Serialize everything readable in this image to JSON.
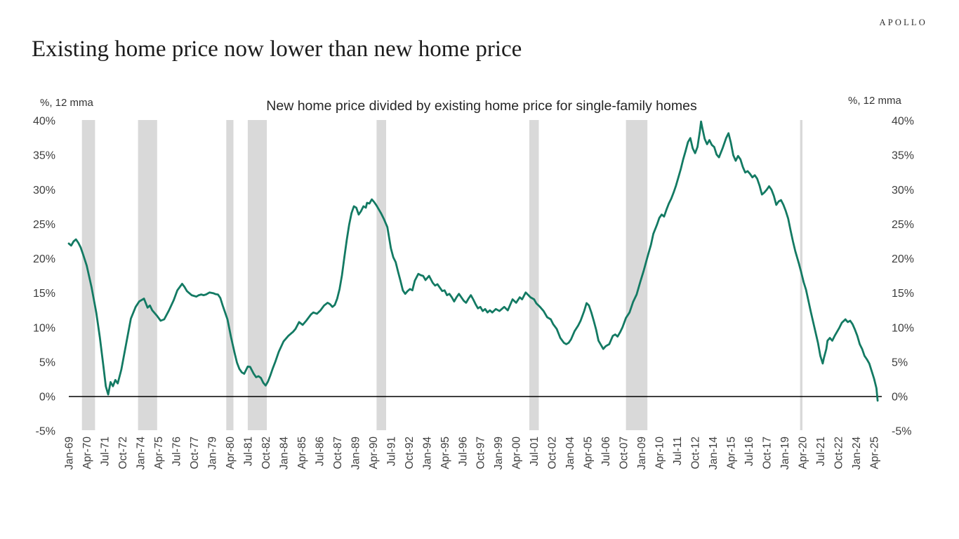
{
  "branding": {
    "logo": "APOLLO"
  },
  "header": {
    "title": "Existing home price now lower than new home price"
  },
  "chart": {
    "title": "New home price divided by existing home price for single-family homes",
    "left_unit_label": "%, 12 mma",
    "right_unit_label": "%, 12 mma",
    "line_color": "#137a63",
    "recession_band_color": "#d9d9d9",
    "axis_line_color": "#000000",
    "tick_text_color": "#3d3d3d"
  },
  "chart_data": {
    "type": "line",
    "title": "New home price divided by existing home price for single-family homes",
    "xlabel": "",
    "ylabel": "%, 12 mma",
    "ylim": [
      -5,
      40
    ],
    "grid": false,
    "legend": "none",
    "y_tick_values": [
      40,
      35,
      30,
      25,
      20,
      15,
      10,
      5,
      0,
      -5
    ],
    "y_tick_labels": [
      "40%",
      "35%",
      "30%",
      "25%",
      "20%",
      "15%",
      "10%",
      "5%",
      "0%",
      "-5%"
    ],
    "x_start_month": "1969-01",
    "x_tick_interval_months": 15,
    "x_tick_labels": [
      "Jan-69",
      "Apr-70",
      "Jul-71",
      "Oct-72",
      "Jan-74",
      "Apr-75",
      "Jul-76",
      "Oct-77",
      "Jan-79",
      "Apr-80",
      "Jul-81",
      "Oct-82",
      "Jan-84",
      "Apr-85",
      "Jul-86",
      "Oct-87",
      "Jan-89",
      "Apr-90",
      "Jul-91",
      "Oct-92",
      "Jan-94",
      "Apr-95",
      "Jul-96",
      "Oct-97",
      "Jan-99",
      "Apr-00",
      "Jul-01",
      "Oct-02",
      "Jan-04",
      "Apr-05",
      "Jul-06",
      "Oct-07",
      "Jan-09",
      "Apr-10",
      "Jul-11",
      "Oct-12",
      "Jan-14",
      "Apr-15",
      "Jul-16",
      "Oct-17",
      "Jan-19",
      "Apr-20",
      "Jul-21",
      "Oct-22",
      "Jan-24",
      "Apr-25"
    ],
    "recession_bands_month_range": [
      [
        11,
        22
      ],
      [
        58,
        74
      ],
      [
        132,
        138
      ],
      [
        150,
        166
      ],
      [
        258,
        266
      ],
      [
        386,
        394
      ],
      [
        467,
        485
      ],
      [
        613,
        615
      ]
    ],
    "series": [
      {
        "name": "New home price divided by existing home price (%, 12 mma)",
        "points_month_value": [
          [
            0,
            22.2
          ],
          [
            2,
            21.9
          ],
          [
            4,
            22.5
          ],
          [
            6,
            22.8
          ],
          [
            8,
            22.3
          ],
          [
            10,
            21.6
          ],
          [
            12,
            20.6
          ],
          [
            15,
            19.0
          ],
          [
            19,
            15.9
          ],
          [
            23,
            12.2
          ],
          [
            26,
            8.6
          ],
          [
            29,
            4.4
          ],
          [
            31,
            1.5
          ],
          [
            33,
            0.3
          ],
          [
            35,
            2.1
          ],
          [
            37,
            1.5
          ],
          [
            39,
            2.4
          ],
          [
            41,
            1.9
          ],
          [
            44,
            3.9
          ],
          [
            48,
            7.6
          ],
          [
            52,
            11.3
          ],
          [
            56,
            13.0
          ],
          [
            59,
            13.8
          ],
          [
            63,
            14.2
          ],
          [
            66,
            12.9
          ],
          [
            68,
            13.2
          ],
          [
            70,
            12.5
          ],
          [
            74,
            11.7
          ],
          [
            77,
            11.0
          ],
          [
            80,
            11.2
          ],
          [
            84,
            12.5
          ],
          [
            88,
            14.0
          ],
          [
            91,
            15.4
          ],
          [
            95,
            16.35
          ],
          [
            97,
            15.9
          ],
          [
            99,
            15.3
          ],
          [
            101,
            15.0
          ],
          [
            103,
            14.7
          ],
          [
            107,
            14.5
          ],
          [
            109,
            14.7
          ],
          [
            111,
            14.8
          ],
          [
            113,
            14.7
          ],
          [
            115,
            14.8
          ],
          [
            118,
            15.1
          ],
          [
            121,
            15.0
          ],
          [
            123,
            14.85
          ],
          [
            125,
            14.8
          ],
          [
            127,
            14.3
          ],
          [
            129,
            13.2
          ],
          [
            131,
            12.2
          ],
          [
            133,
            11.2
          ],
          [
            136,
            8.6
          ],
          [
            139,
            6.3
          ],
          [
            141,
            4.9
          ],
          [
            143,
            4.0
          ],
          [
            145,
            3.5
          ],
          [
            147,
            3.3
          ],
          [
            150,
            4.35
          ],
          [
            152,
            4.3
          ],
          [
            155,
            3.3
          ],
          [
            157,
            2.8
          ],
          [
            159,
            2.95
          ],
          [
            161,
            2.7
          ],
          [
            163,
            2.0
          ],
          [
            165,
            1.6
          ],
          [
            167,
            2.2
          ],
          [
            169,
            3.1
          ],
          [
            171,
            4.1
          ],
          [
            173,
            5.0
          ],
          [
            176,
            6.5
          ],
          [
            180,
            8.0
          ],
          [
            184,
            8.8
          ],
          [
            188,
            9.4
          ],
          [
            190,
            9.8
          ],
          [
            193,
            10.8
          ],
          [
            196,
            10.4
          ],
          [
            199,
            11.0
          ],
          [
            203,
            11.9
          ],
          [
            205,
            12.2
          ],
          [
            208,
            12.0
          ],
          [
            211,
            12.5
          ],
          [
            214,
            13.2
          ],
          [
            217,
            13.6
          ],
          [
            219,
            13.4
          ],
          [
            221,
            13.0
          ],
          [
            223,
            13.3
          ],
          [
            225,
            14.2
          ],
          [
            227,
            15.6
          ],
          [
            229,
            17.6
          ],
          [
            231,
            20.2
          ],
          [
            233,
            22.7
          ],
          [
            235,
            24.9
          ],
          [
            237,
            26.6
          ],
          [
            239,
            27.6
          ],
          [
            241,
            27.4
          ],
          [
            243,
            26.4
          ],
          [
            245,
            26.9
          ],
          [
            247,
            27.6
          ],
          [
            249,
            27.4
          ],
          [
            250,
            28.1
          ],
          [
            252,
            28.0
          ],
          [
            254,
            28.6
          ],
          [
            256,
            28.2
          ],
          [
            258,
            27.7
          ],
          [
            260,
            27.1
          ],
          [
            262,
            26.5
          ],
          [
            264,
            25.8
          ],
          [
            267,
            24.6
          ],
          [
            270,
            21.5
          ],
          [
            272,
            20.2
          ],
          [
            274,
            19.5
          ],
          [
            276,
            18.1
          ],
          [
            278,
            16.8
          ],
          [
            280,
            15.4
          ],
          [
            282,
            14.9
          ],
          [
            284,
            15.3
          ],
          [
            286,
            15.6
          ],
          [
            288,
            15.4
          ],
          [
            290,
            16.8
          ],
          [
            293,
            17.8
          ],
          [
            295,
            17.6
          ],
          [
            297,
            17.5
          ],
          [
            299,
            16.9
          ],
          [
            302,
            17.5
          ],
          [
            305,
            16.5
          ],
          [
            307,
            16.1
          ],
          [
            309,
            16.3
          ],
          [
            311,
            15.8
          ],
          [
            313,
            15.3
          ],
          [
            315,
            15.4
          ],
          [
            317,
            14.7
          ],
          [
            319,
            14.9
          ],
          [
            321,
            14.4
          ],
          [
            323,
            13.8
          ],
          [
            325,
            14.4
          ],
          [
            327,
            14.9
          ],
          [
            329,
            14.4
          ],
          [
            331,
            13.9
          ],
          [
            333,
            13.6
          ],
          [
            335,
            14.2
          ],
          [
            337,
            14.7
          ],
          [
            339,
            14.1
          ],
          [
            341,
            13.4
          ],
          [
            343,
            12.8
          ],
          [
            345,
            13.0
          ],
          [
            347,
            12.4
          ],
          [
            349,
            12.7
          ],
          [
            351,
            12.2
          ],
          [
            353,
            12.5
          ],
          [
            355,
            12.2
          ],
          [
            358,
            12.7
          ],
          [
            361,
            12.4
          ],
          [
            365,
            13.0
          ],
          [
            368,
            12.5
          ],
          [
            372,
            14.1
          ],
          [
            375,
            13.6
          ],
          [
            378,
            14.4
          ],
          [
            380,
            14.1
          ],
          [
            383,
            15.1
          ],
          [
            385,
            14.75
          ],
          [
            387,
            14.4
          ],
          [
            390,
            14.1
          ],
          [
            392,
            13.5
          ],
          [
            395,
            13.0
          ],
          [
            398,
            12.4
          ],
          [
            401,
            11.5
          ],
          [
            404,
            11.2
          ],
          [
            406,
            10.5
          ],
          [
            409,
            9.8
          ],
          [
            412,
            8.5
          ],
          [
            415,
            7.8
          ],
          [
            417,
            7.6
          ],
          [
            419,
            7.8
          ],
          [
            421,
            8.3
          ],
          [
            424,
            9.5
          ],
          [
            427,
            10.3
          ],
          [
            429,
            11.0
          ],
          [
            432,
            12.4
          ],
          [
            434,
            13.55
          ],
          [
            436,
            13.2
          ],
          [
            438,
            12.2
          ],
          [
            440,
            11.0
          ],
          [
            442,
            9.7
          ],
          [
            444,
            8.1
          ],
          [
            446,
            7.5
          ],
          [
            448,
            6.9
          ],
          [
            450,
            7.3
          ],
          [
            453,
            7.6
          ],
          [
            456,
            8.8
          ],
          [
            458,
            9.0
          ],
          [
            460,
            8.7
          ],
          [
            462,
            9.3
          ],
          [
            464,
            10.0
          ],
          [
            467,
            11.4
          ],
          [
            470,
            12.2
          ],
          [
            473,
            13.7
          ],
          [
            476,
            14.8
          ],
          [
            479,
            16.6
          ],
          [
            482,
            18.3
          ],
          [
            485,
            20.2
          ],
          [
            488,
            22.0
          ],
          [
            490,
            23.6
          ],
          [
            493,
            24.9
          ],
          [
            495,
            25.9
          ],
          [
            497,
            26.4
          ],
          [
            499,
            26.1
          ],
          [
            501,
            27.1
          ],
          [
            503,
            28.0
          ],
          [
            505,
            28.7
          ],
          [
            507,
            29.6
          ],
          [
            509,
            30.6
          ],
          [
            511,
            31.8
          ],
          [
            513,
            33.0
          ],
          [
            515,
            34.4
          ],
          [
            517,
            35.6
          ],
          [
            519,
            36.9
          ],
          [
            521,
            37.5
          ],
          [
            523,
            36.0
          ],
          [
            525,
            35.3
          ],
          [
            527,
            36.2
          ],
          [
            529,
            38.5
          ],
          [
            530,
            39.9
          ],
          [
            531,
            39.0
          ],
          [
            533,
            37.4
          ],
          [
            535,
            36.6
          ],
          [
            537,
            37.2
          ],
          [
            539,
            36.5
          ],
          [
            541,
            36.2
          ],
          [
            543,
            35.1
          ],
          [
            545,
            34.7
          ],
          [
            548,
            36.0
          ],
          [
            551,
            37.5
          ],
          [
            553,
            38.2
          ],
          [
            555,
            36.8
          ],
          [
            557,
            35.0
          ],
          [
            559,
            34.2
          ],
          [
            561,
            34.9
          ],
          [
            563,
            34.4
          ],
          [
            565,
            33.3
          ],
          [
            567,
            32.5
          ],
          [
            569,
            32.7
          ],
          [
            571,
            32.3
          ],
          [
            573,
            31.8
          ],
          [
            575,
            32.1
          ],
          [
            577,
            31.6
          ],
          [
            579,
            30.6
          ],
          [
            581,
            29.3
          ],
          [
            583,
            29.6
          ],
          [
            585,
            30.0
          ],
          [
            587,
            30.5
          ],
          [
            589,
            30.0
          ],
          [
            591,
            29.1
          ],
          [
            593,
            27.8
          ],
          [
            595,
            28.3
          ],
          [
            597,
            28.5
          ],
          [
            599,
            27.8
          ],
          [
            601,
            26.9
          ],
          [
            603,
            25.8
          ],
          [
            605,
            24.1
          ],
          [
            607,
            22.5
          ],
          [
            609,
            21.1
          ],
          [
            612,
            19.3
          ],
          [
            614,
            18.0
          ],
          [
            616,
            16.6
          ],
          [
            618,
            15.5
          ],
          [
            620,
            13.9
          ],
          [
            622,
            12.3
          ],
          [
            624,
            10.8
          ],
          [
            626,
            9.3
          ],
          [
            628,
            7.8
          ],
          [
            630,
            5.9
          ],
          [
            632,
            4.8
          ],
          [
            633,
            5.6
          ],
          [
            635,
            6.9
          ],
          [
            636,
            8.1
          ],
          [
            638,
            8.5
          ],
          [
            640,
            8.1
          ],
          [
            642,
            8.8
          ],
          [
            644,
            9.4
          ],
          [
            646,
            10.0
          ],
          [
            648,
            10.7
          ],
          [
            651,
            11.2
          ],
          [
            653,
            10.8
          ],
          [
            655,
            11.0
          ],
          [
            657,
            10.5
          ],
          [
            659,
            9.7
          ],
          [
            661,
            8.8
          ],
          [
            663,
            7.6
          ],
          [
            665,
            6.9
          ],
          [
            667,
            5.9
          ],
          [
            669,
            5.4
          ],
          [
            671,
            4.8
          ],
          [
            673,
            3.7
          ],
          [
            675,
            2.6
          ],
          [
            677,
            1.2
          ],
          [
            678,
            -0.6
          ]
        ]
      }
    ]
  }
}
